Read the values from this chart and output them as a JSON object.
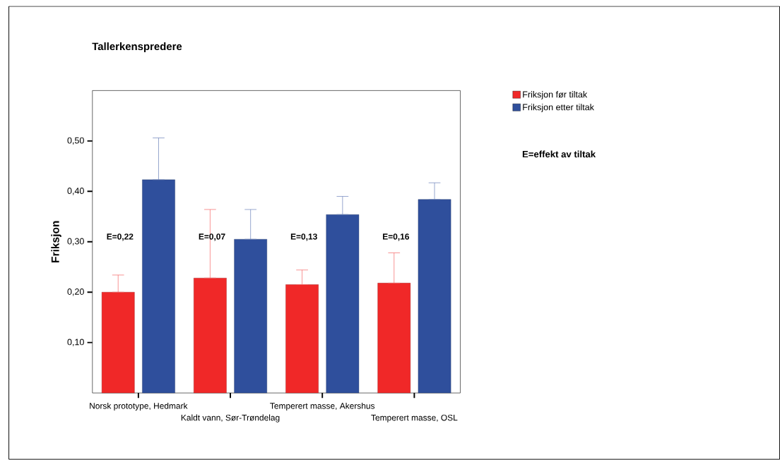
{
  "chart_data": {
    "type": "bar",
    "title": "Tallerkenspredere",
    "ylabel": "Friksjon",
    "categories": [
      "Norsk prototype, Hedmark",
      "Kaldt vann, Sør-Trøndelag",
      "Temperert masse, Akershus",
      "Temperert masse, OSL"
    ],
    "series": [
      {
        "name": "Friksjon før tiltak",
        "color": "#f02828",
        "values": [
          0.2,
          0.228,
          0.215,
          0.218
        ],
        "errors": [
          [
            0.2,
            0.234
          ],
          [
            0.228,
            0.364
          ],
          [
            0.215,
            0.244
          ],
          [
            0.218,
            0.278
          ]
        ]
      },
      {
        "name": "Friksjon etter tiltak",
        "color": "#2f4f9c",
        "values": [
          0.423,
          0.305,
          0.354,
          0.384
        ],
        "errors": [
          [
            0.423,
            0.506
          ],
          [
            0.305,
            0.364
          ],
          [
            0.354,
            0.39
          ],
          [
            0.384,
            0.417
          ]
        ]
      }
    ],
    "ylim": [
      0,
      0.6
    ],
    "yticks": [
      {
        "value": 0.1,
        "label": "0,10"
      },
      {
        "value": 0.2,
        "label": "0,20"
      },
      {
        "value": 0.3,
        "label": "0,30"
      },
      {
        "value": 0.4,
        "label": "0,40"
      },
      {
        "value": 0.5,
        "label": "0,50"
      }
    ],
    "annotations": [
      "E=0,22",
      "E=0,07",
      "E=0,13",
      "E=0,16",
      "E=effekt av tiltak"
    ],
    "grid": false,
    "legend": "top right"
  }
}
